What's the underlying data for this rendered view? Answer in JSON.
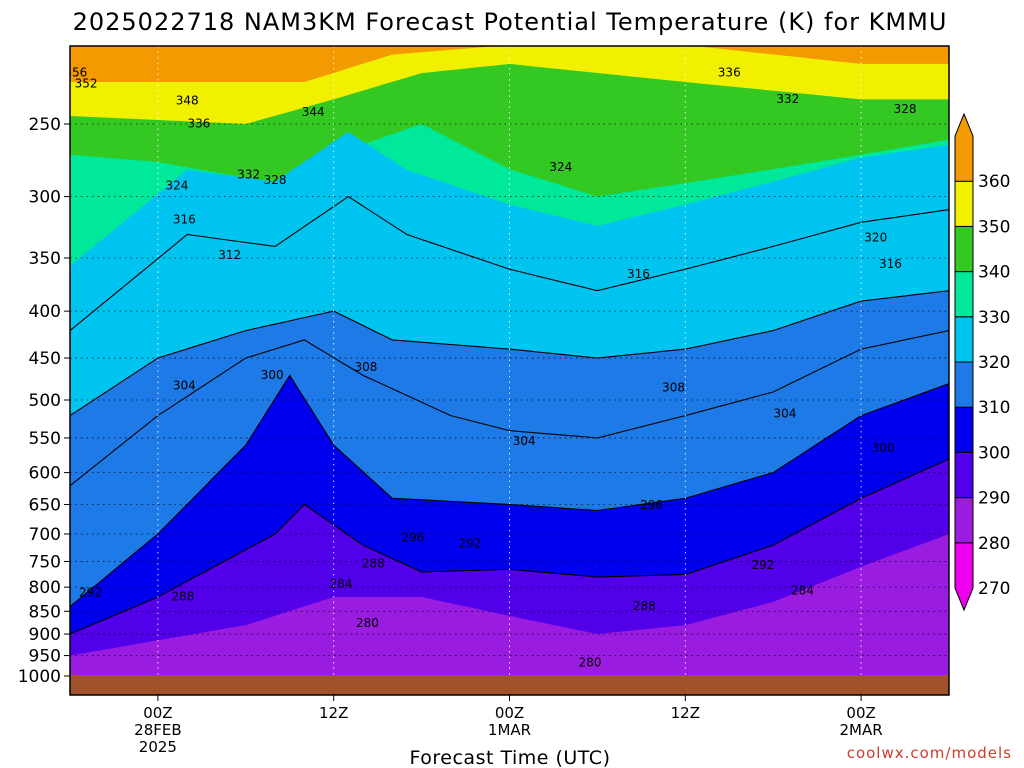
{
  "chart_data": {
    "type": "contour",
    "title": "2025022718 NAM3KM Forecast Potential Temperature (K) for KMMU",
    "xlabel": "Forecast Time (UTC)",
    "ylabel": "",
    "credit": "coolwx.com/models",
    "y_scale": "log",
    "ylim": [
      200,
      1050
    ],
    "yticks": [
      250,
      300,
      350,
      400,
      450,
      500,
      550,
      600,
      650,
      700,
      750,
      800,
      850,
      900,
      950,
      1000
    ],
    "x_hours": [
      -6,
      54
    ],
    "xticks": [
      {
        "hour": 0,
        "lines": [
          "00Z",
          "28FEB",
          "2025"
        ]
      },
      {
        "hour": 12,
        "lines": [
          "12Z"
        ]
      },
      {
        "hour": 24,
        "lines": [
          "00Z",
          "1MAR"
        ]
      },
      {
        "hour": 36,
        "lines": [
          "12Z"
        ]
      },
      {
        "hour": 48,
        "lines": [
          "00Z",
          "2MAR"
        ]
      }
    ],
    "colorbar": {
      "labels": [
        360,
        350,
        340,
        330,
        320,
        310,
        300,
        290,
        280,
        270
      ],
      "bands": [
        {
          "from": 270,
          "to": 280,
          "color": "#ee00ee"
        },
        {
          "from": 280,
          "to": 290,
          "color": "#9a1ce0"
        },
        {
          "from": 290,
          "to": 300,
          "color": "#5200ea"
        },
        {
          "from": 300,
          "to": 310,
          "color": "#0000ee"
        },
        {
          "from": 310,
          "to": 320,
          "color": "#1e7ae6"
        },
        {
          "from": 320,
          "to": 330,
          "color": "#00c4f0"
        },
        {
          "from": 330,
          "to": 340,
          "color": "#00e899"
        },
        {
          "from": 340,
          "to": 350,
          "color": "#34c822"
        },
        {
          "from": 350,
          "to": 360,
          "color": "#f0f000"
        },
        {
          "from": 360,
          "to": 370,
          "color": "#f29a00"
        }
      ]
    },
    "ground_color": "#a0522d",
    "isentrope_levels": [
      296,
      300,
      304,
      308,
      316
    ],
    "isentropes": [
      {
        "theta": 296,
        "p": [
          [
            -6,
            900
          ],
          [
            0,
            820
          ],
          [
            8,
            700
          ],
          [
            10,
            650
          ],
          [
            14,
            720
          ],
          [
            18,
            770
          ],
          [
            24,
            765
          ],
          [
            30,
            780
          ],
          [
            36,
            775
          ],
          [
            42,
            720
          ],
          [
            48,
            640
          ],
          [
            54,
            580
          ]
        ]
      },
      {
        "theta": 300,
        "p": [
          [
            -6,
            840
          ],
          [
            0,
            700
          ],
          [
            6,
            560
          ],
          [
            9,
            470
          ],
          [
            12,
            560
          ],
          [
            16,
            640
          ],
          [
            24,
            650
          ],
          [
            30,
            660
          ],
          [
            36,
            640
          ],
          [
            42,
            600
          ],
          [
            48,
            520
          ],
          [
            54,
            480
          ]
        ]
      },
      {
        "theta": 304,
        "p": [
          [
            -6,
            620
          ],
          [
            0,
            520
          ],
          [
            6,
            450
          ],
          [
            10,
            430
          ],
          [
            14,
            470
          ],
          [
            20,
            520
          ],
          [
            24,
            540
          ],
          [
            30,
            550
          ],
          [
            36,
            520
          ],
          [
            42,
            490
          ],
          [
            48,
            440
          ],
          [
            54,
            420
          ]
        ]
      },
      {
        "theta": 308,
        "p": [
          [
            -6,
            520
          ],
          [
            0,
            450
          ],
          [
            6,
            420
          ],
          [
            12,
            400
          ],
          [
            16,
            430
          ],
          [
            24,
            440
          ],
          [
            30,
            450
          ],
          [
            36,
            440
          ],
          [
            42,
            420
          ],
          [
            48,
            390
          ],
          [
            54,
            380
          ]
        ]
      },
      {
        "theta": 316,
        "p": [
          [
            -6,
            420
          ],
          [
            2,
            330
          ],
          [
            8,
            340
          ],
          [
            13,
            300
          ],
          [
            17,
            330
          ],
          [
            24,
            360
          ],
          [
            30,
            380
          ],
          [
            36,
            360
          ],
          [
            42,
            340
          ],
          [
            48,
            320
          ],
          [
            54,
            310
          ]
        ]
      }
    ],
    "contour_labels": [
      {
        "value": "356",
        "hour": -5.6,
        "p": 220
      },
      {
        "value": "352",
        "hour": -4.9,
        "p": 226
      },
      {
        "value": "348",
        "hour": 2.0,
        "p": 236
      },
      {
        "value": "344",
        "hour": 10.6,
        "p": 243
      },
      {
        "value": "336",
        "hour": 2.8,
        "p": 250
      },
      {
        "value": "336",
        "hour": 39.0,
        "p": 220
      },
      {
        "value": "332",
        "hour": 43.0,
        "p": 235
      },
      {
        "value": "328",
        "hour": 51.0,
        "p": 241
      },
      {
        "value": "324",
        "hour": 27.5,
        "p": 279
      },
      {
        "value": "324",
        "hour": 1.3,
        "p": 292
      },
      {
        "value": "332",
        "hour": 6.2,
        "p": 284
      },
      {
        "value": "328",
        "hour": 8.0,
        "p": 288
      },
      {
        "value": "316",
        "hour": 1.8,
        "p": 318
      },
      {
        "value": "320",
        "hour": 49.0,
        "p": 333
      },
      {
        "value": "312",
        "hour": 4.9,
        "p": 348
      },
      {
        "value": "316",
        "hour": 32.8,
        "p": 365
      },
      {
        "value": "316",
        "hour": 50.0,
        "p": 356
      },
      {
        "value": "308",
        "hour": 14.2,
        "p": 461
      },
      {
        "value": "304",
        "hour": 1.8,
        "p": 483
      },
      {
        "value": "300",
        "hour": 7.8,
        "p": 470
      },
      {
        "value": "308",
        "hour": 35.2,
        "p": 485
      },
      {
        "value": "304",
        "hour": 42.8,
        "p": 518
      },
      {
        "value": "304",
        "hour": 25.0,
        "p": 555
      },
      {
        "value": "300",
        "hour": 49.5,
        "p": 565
      },
      {
        "value": "296",
        "hour": 33.7,
        "p": 652
      },
      {
        "value": "296",
        "hour": 17.4,
        "p": 707
      },
      {
        "value": "292",
        "hour": 21.3,
        "p": 718
      },
      {
        "value": "288",
        "hour": 14.7,
        "p": 755
      },
      {
        "value": "292",
        "hour": 41.3,
        "p": 758
      },
      {
        "value": "284",
        "hour": 12.5,
        "p": 795
      },
      {
        "value": "292",
        "hour": -4.6,
        "p": 812
      },
      {
        "value": "288",
        "hour": 1.7,
        "p": 820
      },
      {
        "value": "284",
        "hour": 44.0,
        "p": 808
      },
      {
        "value": "288",
        "hour": 33.2,
        "p": 840
      },
      {
        "value": "280",
        "hour": 14.3,
        "p": 877
      },
      {
        "value": "280",
        "hour": 29.5,
        "p": 968
      }
    ]
  }
}
